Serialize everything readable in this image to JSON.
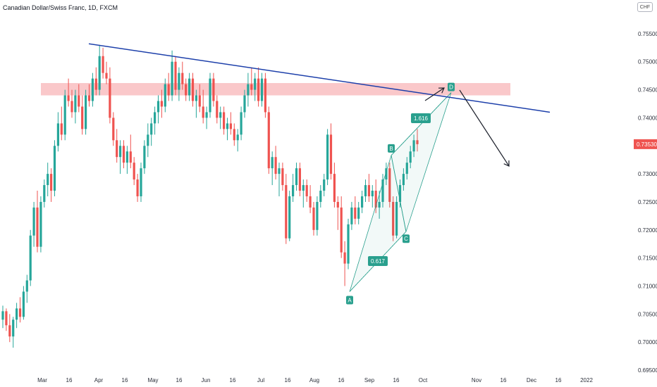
{
  "header": {
    "title": "Canadian Dollar/Swiss Franc, 1D, FXCM",
    "currency": "CHF"
  },
  "chart_data": {
    "type": "candlestick",
    "title": "Canadian Dollar/Swiss Franc, 1D, FXCM",
    "ylim": [
      0.6945,
      0.7585
    ],
    "y_ticks": [
      "0.69500",
      "0.70000",
      "0.70500",
      "0.71000",
      "0.71500",
      "0.72000",
      "0.72500",
      "0.73000",
      "0.73500",
      "0.74000",
      "0.74500",
      "0.75000",
      "0.75500"
    ],
    "x_ticks": [
      "Mar",
      "16",
      "Apr",
      "16",
      "May",
      "16",
      "Jun",
      "16",
      "Jul",
      "16",
      "Aug",
      "16",
      "Sep",
      "16",
      "Oct",
      "Nov",
      "16",
      "Dec",
      "16",
      "2022"
    ],
    "last_price": "0.73530",
    "up_color": "#26a69a",
    "down_color": "#ef5350",
    "candles": [
      [
        0.704,
        0.7065,
        0.7025,
        0.7055
      ],
      [
        0.7055,
        0.706,
        0.702,
        0.703
      ],
      [
        0.703,
        0.705,
        0.7,
        0.701
      ],
      [
        0.701,
        0.7045,
        0.699,
        0.704
      ],
      [
        0.704,
        0.707,
        0.7025,
        0.706
      ],
      [
        0.706,
        0.708,
        0.7035,
        0.7045
      ],
      [
        0.7045,
        0.71,
        0.704,
        0.709
      ],
      [
        0.709,
        0.712,
        0.707,
        0.711
      ],
      [
        0.711,
        0.72,
        0.71,
        0.719
      ],
      [
        0.719,
        0.725,
        0.717,
        0.724
      ],
      [
        0.724,
        0.727,
        0.716,
        0.717
      ],
      [
        0.717,
        0.726,
        0.716,
        0.725
      ],
      [
        0.725,
        0.729,
        0.724,
        0.728
      ],
      [
        0.728,
        0.732,
        0.726,
        0.73
      ],
      [
        0.73,
        0.731,
        0.725,
        0.727
      ],
      [
        0.727,
        0.736,
        0.726,
        0.735
      ],
      [
        0.735,
        0.741,
        0.734,
        0.739
      ],
      [
        0.739,
        0.742,
        0.736,
        0.737
      ],
      [
        0.737,
        0.745,
        0.736,
        0.744
      ],
      [
        0.744,
        0.747,
        0.742,
        0.743
      ],
      [
        0.743,
        0.745,
        0.74,
        0.741
      ],
      [
        0.741,
        0.745,
        0.739,
        0.744
      ],
      [
        0.744,
        0.746,
        0.741,
        0.742
      ],
      [
        0.742,
        0.744,
        0.737,
        0.738
      ],
      [
        0.738,
        0.745,
        0.737,
        0.744
      ],
      [
        0.744,
        0.746,
        0.742,
        0.743
      ],
      [
        0.743,
        0.748,
        0.742,
        0.747
      ],
      [
        0.747,
        0.749,
        0.744,
        0.745
      ],
      [
        0.745,
        0.753,
        0.744,
        0.751
      ],
      [
        0.751,
        0.7525,
        0.747,
        0.748
      ],
      [
        0.748,
        0.75,
        0.746,
        0.747
      ],
      [
        0.747,
        0.749,
        0.739,
        0.74
      ],
      [
        0.74,
        0.741,
        0.735,
        0.736
      ],
      [
        0.736,
        0.738,
        0.732,
        0.733
      ],
      [
        0.733,
        0.736,
        0.73,
        0.735
      ],
      [
        0.735,
        0.736,
        0.731,
        0.732
      ],
      [
        0.732,
        0.735,
        0.73,
        0.734
      ],
      [
        0.734,
        0.737,
        0.731,
        0.732
      ],
      [
        0.732,
        0.733,
        0.728,
        0.729
      ],
      [
        0.729,
        0.73,
        0.725,
        0.726
      ],
      [
        0.726,
        0.732,
        0.725,
        0.731
      ],
      [
        0.731,
        0.736,
        0.73,
        0.735
      ],
      [
        0.735,
        0.739,
        0.733,
        0.737
      ],
      [
        0.737,
        0.74,
        0.735,
        0.739
      ],
      [
        0.739,
        0.742,
        0.737,
        0.741
      ],
      [
        0.741,
        0.744,
        0.739,
        0.743
      ],
      [
        0.743,
        0.745,
        0.74,
        0.742
      ],
      [
        0.742,
        0.747,
        0.741,
        0.746
      ],
      [
        0.746,
        0.748,
        0.743,
        0.744
      ],
      [
        0.744,
        0.752,
        0.743,
        0.75
      ],
      [
        0.75,
        0.751,
        0.744,
        0.745
      ],
      [
        0.745,
        0.749,
        0.743,
        0.748
      ],
      [
        0.748,
        0.75,
        0.745,
        0.746
      ],
      [
        0.746,
        0.747,
        0.743,
        0.744
      ],
      [
        0.744,
        0.748,
        0.743,
        0.747
      ],
      [
        0.747,
        0.748,
        0.742,
        0.743
      ],
      [
        0.743,
        0.745,
        0.74,
        0.744
      ],
      [
        0.744,
        0.746,
        0.741,
        0.742
      ],
      [
        0.742,
        0.745,
        0.739,
        0.74
      ],
      [
        0.74,
        0.742,
        0.738,
        0.741
      ],
      [
        0.741,
        0.748,
        0.74,
        0.747
      ],
      [
        0.747,
        0.748,
        0.742,
        0.743
      ],
      [
        0.743,
        0.744,
        0.739,
        0.74
      ],
      [
        0.74,
        0.742,
        0.738,
        0.741
      ],
      [
        0.741,
        0.742,
        0.737,
        0.738
      ],
      [
        0.738,
        0.74,
        0.736,
        0.739
      ],
      [
        0.739,
        0.741,
        0.737,
        0.738
      ],
      [
        0.738,
        0.739,
        0.735,
        0.736
      ],
      [
        0.736,
        0.738,
        0.734,
        0.737
      ],
      [
        0.737,
        0.742,
        0.736,
        0.741
      ],
      [
        0.741,
        0.745,
        0.74,
        0.744
      ],
      [
        0.744,
        0.748,
        0.742,
        0.746
      ],
      [
        0.746,
        0.749,
        0.744,
        0.745
      ],
      [
        0.745,
        0.748,
        0.743,
        0.747
      ],
      [
        0.747,
        0.749,
        0.742,
        0.743
      ],
      [
        0.743,
        0.748,
        0.742,
        0.747
      ],
      [
        0.747,
        0.748,
        0.74,
        0.741
      ],
      [
        0.741,
        0.742,
        0.73,
        0.731
      ],
      [
        0.731,
        0.734,
        0.728,
        0.733
      ],
      [
        0.733,
        0.735,
        0.729,
        0.73
      ],
      [
        0.73,
        0.732,
        0.726,
        0.731
      ],
      [
        0.731,
        0.732,
        0.727,
        0.728
      ],
      [
        0.728,
        0.73,
        0.7175,
        0.7185
      ],
      [
        0.7185,
        0.727,
        0.718,
        0.726
      ],
      [
        0.726,
        0.73,
        0.725,
        0.728
      ],
      [
        0.728,
        0.732,
        0.727,
        0.731
      ],
      [
        0.731,
        0.732,
        0.726,
        0.727
      ],
      [
        0.727,
        0.729,
        0.724,
        0.728
      ],
      [
        0.728,
        0.729,
        0.725,
        0.726
      ],
      [
        0.726,
        0.728,
        0.723,
        0.724
      ],
      [
        0.724,
        0.725,
        0.719,
        0.72
      ],
      [
        0.72,
        0.726,
        0.719,
        0.725
      ],
      [
        0.725,
        0.728,
        0.724,
        0.727
      ],
      [
        0.727,
        0.73,
        0.726,
        0.729
      ],
      [
        0.729,
        0.738,
        0.728,
        0.737
      ],
      [
        0.737,
        0.739,
        0.729,
        0.73
      ],
      [
        0.73,
        0.732,
        0.724,
        0.725
      ],
      [
        0.725,
        0.726,
        0.72,
        0.724
      ],
      [
        0.724,
        0.726,
        0.715,
        0.716
      ],
      [
        0.716,
        0.718,
        0.71,
        0.714
      ],
      [
        0.714,
        0.722,
        0.713,
        0.721
      ],
      [
        0.721,
        0.725,
        0.72,
        0.724
      ],
      [
        0.724,
        0.726,
        0.721,
        0.722
      ],
      [
        0.722,
        0.725,
        0.721,
        0.724
      ],
      [
        0.724,
        0.727,
        0.723,
        0.726
      ],
      [
        0.726,
        0.729,
        0.725,
        0.728
      ],
      [
        0.728,
        0.73,
        0.725,
        0.726
      ],
      [
        0.726,
        0.728,
        0.724,
        0.727
      ],
      [
        0.727,
        0.729,
        0.723,
        0.724
      ],
      [
        0.724,
        0.727,
        0.722,
        0.725
      ],
      [
        0.725,
        0.73,
        0.724,
        0.729
      ],
      [
        0.729,
        0.732,
        0.728,
        0.731
      ],
      [
        0.731,
        0.732,
        0.724,
        0.725
      ],
      [
        0.725,
        0.726,
        0.718,
        0.719
      ],
      [
        0.719,
        0.726,
        0.7185,
        0.725
      ],
      [
        0.725,
        0.729,
        0.724,
        0.728
      ],
      [
        0.728,
        0.731,
        0.727,
        0.73
      ],
      [
        0.73,
        0.733,
        0.729,
        0.732
      ],
      [
        0.732,
        0.735,
        0.731,
        0.734
      ],
      [
        0.734,
        0.737,
        0.733,
        0.736
      ],
      [
        0.736,
        0.738,
        0.734,
        0.7353
      ]
    ],
    "resistance_zone": {
      "low": 0.744,
      "high": 0.7462
    },
    "trendline": {
      "from": [
        0.7532
      ],
      "to": [
        0.741
      ]
    },
    "pattern": {
      "points": {
        "A": 0.709,
        "B": 0.7333,
        "C": 0.7197,
        "D": 0.7445
      },
      "ratios": [
        {
          "label": "0.617"
        },
        {
          "label": "1.616"
        }
      ]
    }
  }
}
